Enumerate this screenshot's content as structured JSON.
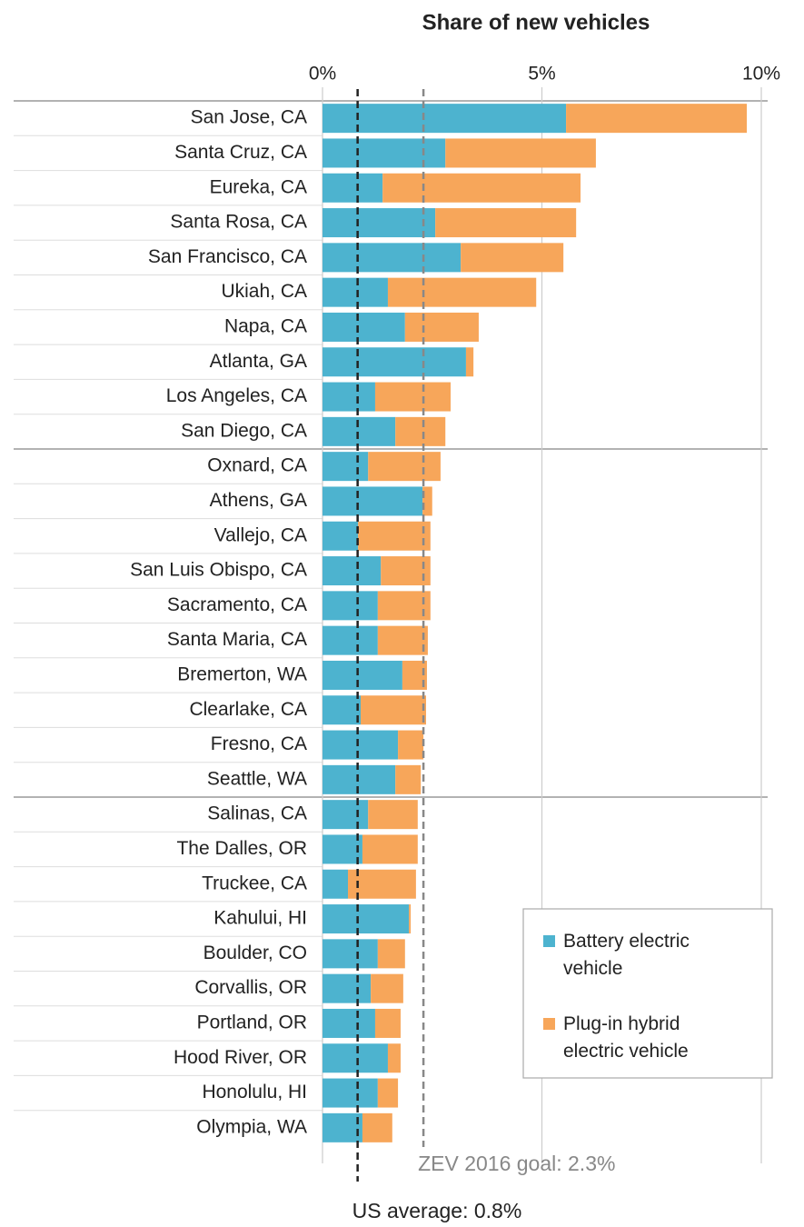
{
  "chart_data": {
    "type": "stacked-barh",
    "title": "Share of new vehicles",
    "categories": [
      "San Jose, CA",
      "Santa Cruz, CA",
      "Eureka, CA",
      "Santa Rosa, CA",
      "San Francisco, CA",
      "Ukiah, CA",
      "Napa, CA",
      "Atlanta, GA",
      "Los Angeles, CA",
      "San Diego, CA",
      "Oxnard, CA",
      "Athens, GA",
      "Vallejo, CA",
      "San Luis Obispo, CA",
      "Sacramento, CA",
      "Santa Maria, CA",
      "Bremerton, WA",
      "Clearlake, CA",
      "Fresno, CA",
      "Seattle, WA",
      "Salinas, CA",
      "The Dalles, OR",
      "Truckee, CA",
      "Kahului, HI",
      "Boulder, CO",
      "Corvallis, OR",
      "Portland, OR",
      "Hood River, OR",
      "Honolulu, HI",
      "Olympia, WA"
    ],
    "series": [
      {
        "name": "Battery electric vehicle",
        "color": "#4db3cf",
        "values": [
          5.55,
          2.8,
          1.37,
          2.57,
          3.15,
          1.49,
          1.88,
          3.27,
          1.2,
          1.66,
          1.04,
          2.28,
          0.81,
          1.33,
          1.26,
          1.26,
          1.82,
          0.87,
          1.72,
          1.66,
          1.04,
          0.91,
          0.58,
          1.97,
          1.26,
          1.1,
          1.2,
          1.49,
          1.26,
          0.91
        ]
      },
      {
        "name": "Plug-in hybrid electric vehicle",
        "color": "#f7a65a",
        "values": [
          4.12,
          3.43,
          4.51,
          3.21,
          2.34,
          3.38,
          1.68,
          0.17,
          1.72,
          1.14,
          1.65,
          0.22,
          1.65,
          1.13,
          1.2,
          1.14,
          0.56,
          1.49,
          0.58,
          0.58,
          1.13,
          1.26,
          1.55,
          0.04,
          0.62,
          0.74,
          0.58,
          0.29,
          0.46,
          0.68
        ]
      }
    ],
    "xlim": [
      0,
      10
    ],
    "xticks": [
      {
        "value": 0,
        "label": "0%"
      },
      {
        "value": 5,
        "label": "5%"
      },
      {
        "value": 10,
        "label": "10%"
      }
    ],
    "grid": true,
    "reference_lines": [
      {
        "label": "US average: 0.8%",
        "value": 0.8,
        "color": "#222222"
      },
      {
        "label": "ZEV 2016 goal: 2.3%",
        "value": 2.3,
        "color": "#888888"
      }
    ],
    "legend": "lower-right"
  }
}
